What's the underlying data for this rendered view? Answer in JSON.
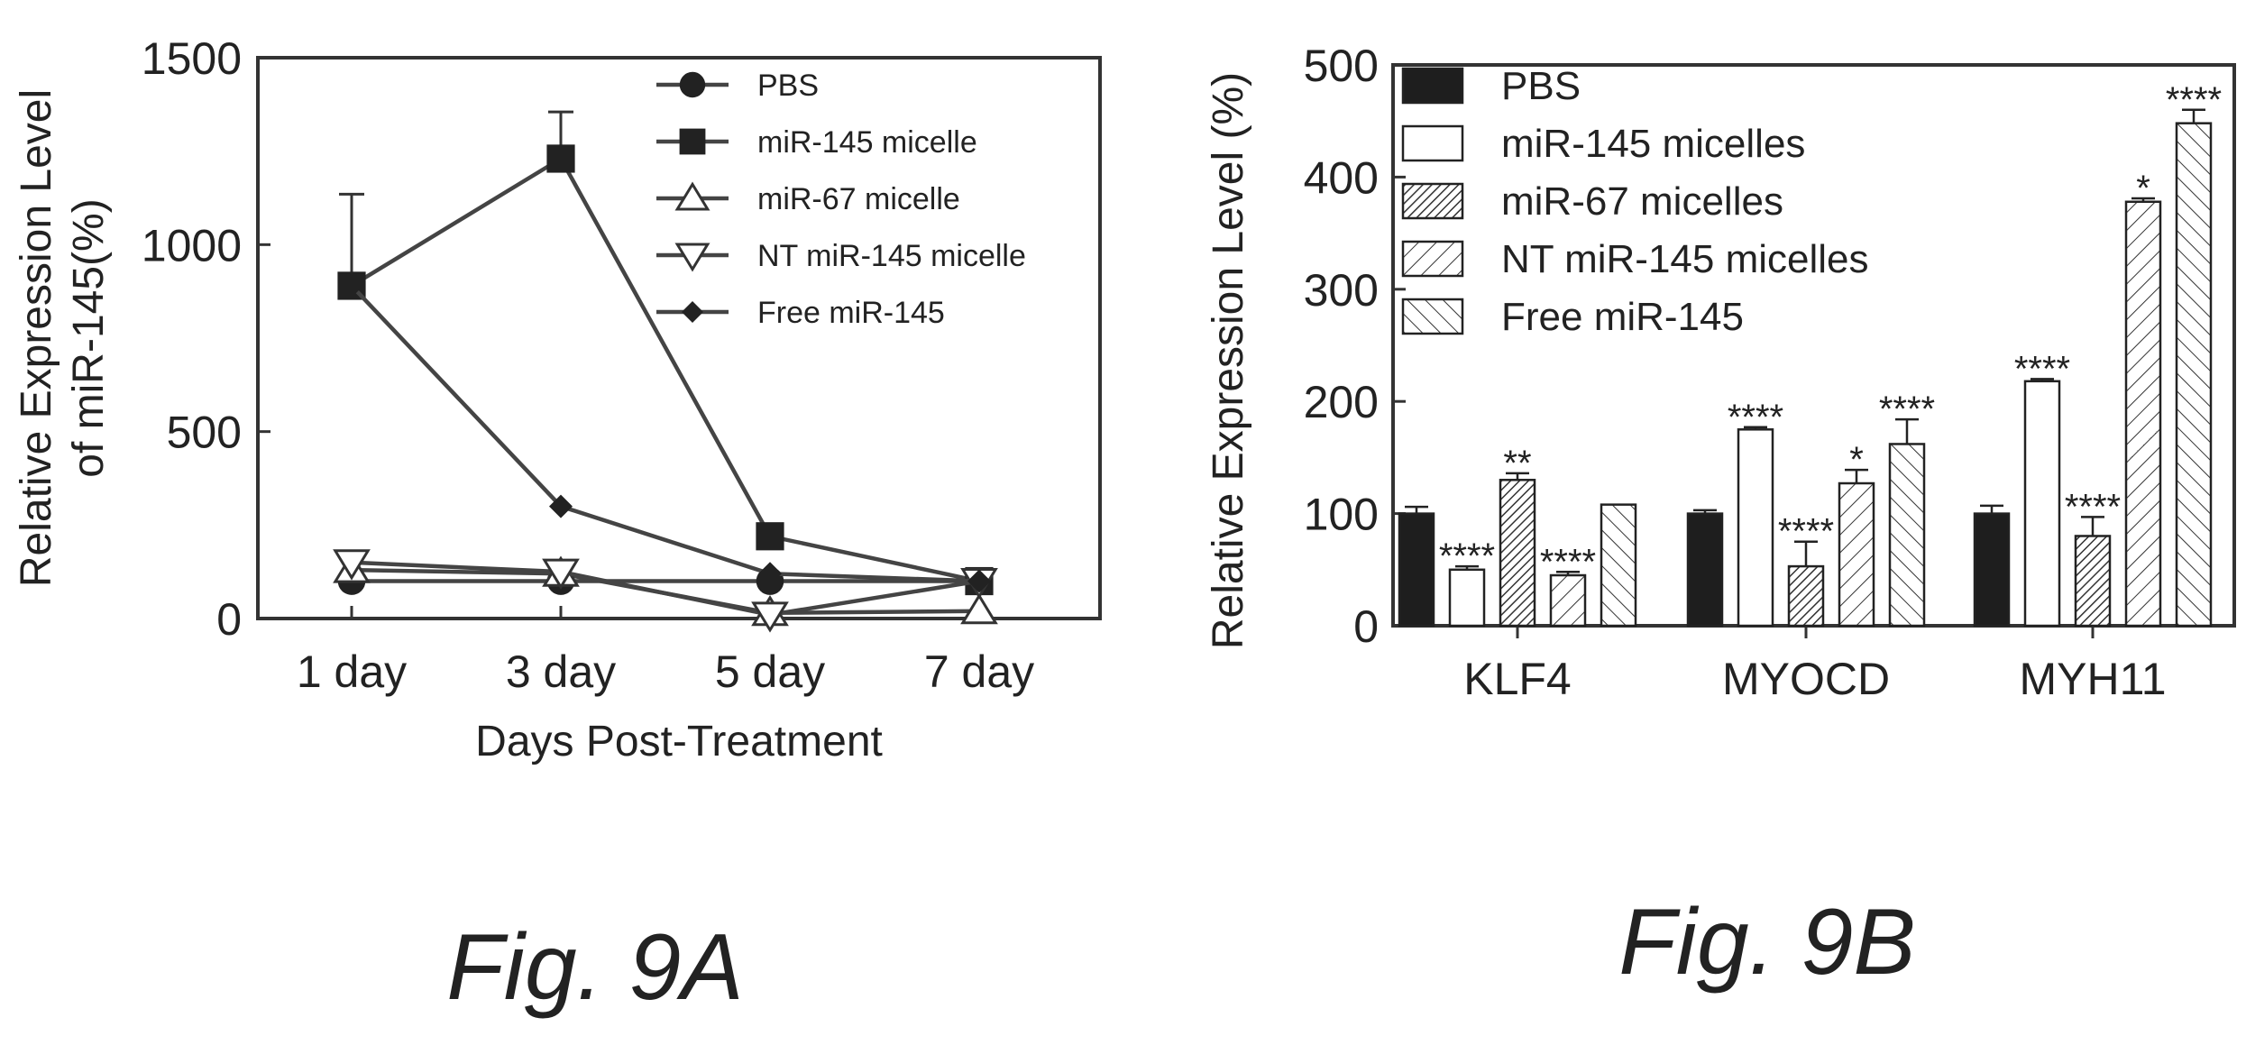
{
  "chart_data": [
    {
      "panel": "A",
      "type": "line",
      "caption": "Fig. 9A",
      "xlabel": "Days Post-Treatment",
      "ylabel_lines": [
        "Relative Expression Level",
        "of miR-145(%)"
      ],
      "categories": [
        "1 day",
        "3 day",
        "5 day",
        "7 day"
      ],
      "ylim": [
        0,
        1500
      ],
      "yticks": [
        0,
        500,
        1000,
        1500
      ],
      "grid": false,
      "legend_position": "top-right",
      "series": [
        {
          "name": "PBS",
          "marker": "circle",
          "values": [
            100,
            100,
            100,
            100
          ]
        },
        {
          "name": "miR-145 micelle",
          "marker": "square",
          "values": [
            890,
            1230,
            220,
            100
          ],
          "errors": [
            245,
            125,
            0,
            0
          ]
        },
        {
          "name": "miR-67 micelle",
          "marker": "triangle-up",
          "values": [
            130,
            120,
            15,
            20
          ]
        },
        {
          "name": "NT miR-145 micelle",
          "marker": "triangle-down",
          "values": [
            150,
            125,
            10,
            100
          ]
        },
        {
          "name": "Free miR-145",
          "marker": "diamond",
          "values": [
            890,
            300,
            120,
            100
          ]
        }
      ]
    },
    {
      "panel": "B",
      "type": "bar",
      "caption": "Fig. 9B",
      "ylabel": "Relative Expression Level (%)",
      "categories": [
        "KLF4",
        "MYOCD",
        "MYH11"
      ],
      "ylim": [
        0,
        500
      ],
      "yticks": [
        0,
        100,
        200,
        300,
        400,
        500
      ],
      "grid": false,
      "legend_position": "top-left",
      "series": [
        {
          "name": "PBS",
          "fill": "solid",
          "values": [
            100,
            100,
            100
          ],
          "errors": [
            6,
            3,
            7
          ],
          "annotations": [
            "",
            "",
            ""
          ]
        },
        {
          "name": "miR-145 micelles",
          "fill": "white",
          "values": [
            50,
            175,
            218
          ],
          "errors": [
            3,
            2,
            2
          ],
          "annotations": [
            "****",
            "****",
            "****"
          ]
        },
        {
          "name": "miR-67 micelles",
          "fill": "dense-hatch",
          "values": [
            130,
            53,
            80
          ],
          "errors": [
            6,
            22,
            17
          ],
          "annotations": [
            "**",
            "****",
            "****"
          ]
        },
        {
          "name": "NT miR-145 micelles",
          "fill": "hatch",
          "values": [
            45,
            127,
            378
          ],
          "errors": [
            3,
            12,
            3
          ],
          "annotations": [
            "****",
            "*",
            "*"
          ]
        },
        {
          "name": "Free miR-145",
          "fill": "back-hatch",
          "values": [
            108,
            162,
            448
          ],
          "errors": [
            0,
            22,
            12
          ],
          "annotations": [
            "",
            "****",
            "****"
          ]
        }
      ]
    }
  ]
}
